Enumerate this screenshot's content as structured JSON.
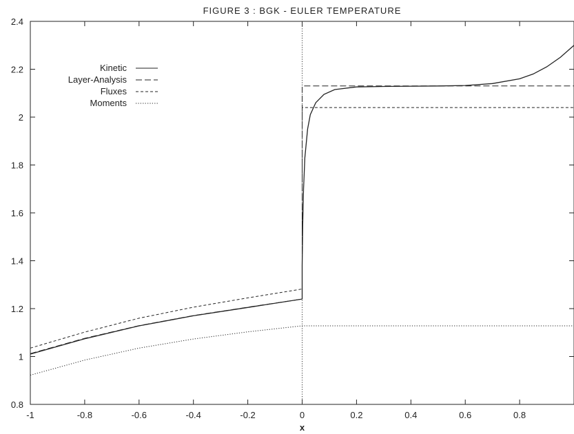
{
  "chart_data": {
    "type": "line",
    "title": "FIGURE 3 : BGK - EULER TEMPERATURE",
    "xlabel": "x",
    "ylabel": "",
    "xlim": [
      -1,
      1
    ],
    "ylim": [
      0.8,
      2.4
    ],
    "xticks": [
      -1,
      -0.8,
      -0.6,
      -0.4,
      -0.2,
      0,
      0.2,
      0.4,
      0.6,
      0.8
    ],
    "xtick_labels": [
      "-1",
      "-0.8",
      "-0.6",
      "-0.4",
      "-0.2",
      "0",
      "0.2",
      "0.4",
      "0.6",
      "0.8"
    ],
    "yticks": [
      0.8,
      1,
      1.2,
      1.4,
      1.6,
      1.8,
      2,
      2.2,
      2.4
    ],
    "ytick_labels": [
      "0.8",
      "1",
      "1.2",
      "1.4",
      "1.6",
      "1.8",
      "2",
      "2.2",
      "2.4"
    ],
    "grid": false,
    "legend_position": "top-left",
    "series": [
      {
        "name": "Kinetic",
        "dash": "solid",
        "x": [
          -1,
          -0.8,
          -0.6,
          -0.4,
          -0.2,
          0,
          0,
          0.002,
          0.005,
          0.01,
          0.02,
          0.03,
          0.05,
          0.08,
          0.12,
          0.2,
          0.3,
          0.5,
          0.6,
          0.7,
          0.8,
          0.85,
          0.9,
          0.95,
          1.0
        ],
        "y": [
          1.01,
          1.074,
          1.128,
          1.17,
          1.205,
          1.24,
          1.38,
          1.55,
          1.7,
          1.83,
          1.95,
          2.01,
          2.06,
          2.095,
          2.115,
          2.126,
          2.128,
          2.13,
          2.132,
          2.14,
          2.16,
          2.18,
          2.21,
          2.25,
          2.3
        ]
      },
      {
        "name": "Layer-Analysis",
        "dash": "dashed",
        "x": [
          -1,
          -0.8,
          -0.6,
          -0.4,
          -0.2,
          0,
          0,
          1.0
        ],
        "y": [
          1.012,
          1.076,
          1.129,
          1.171,
          1.206,
          1.24,
          2.13,
          2.13
        ]
      },
      {
        "name": "Fluxes",
        "dash": "short-dashed",
        "x": [
          -1,
          -0.8,
          -0.6,
          -0.4,
          -0.2,
          0,
          0,
          1.0
        ],
        "y": [
          1.035,
          1.102,
          1.16,
          1.206,
          1.245,
          1.282,
          2.04,
          2.04
        ]
      },
      {
        "name": "Moments",
        "dash": "dotted",
        "x": [
          -1,
          -0.8,
          -0.6,
          -0.4,
          -0.2,
          0,
          1.0
        ],
        "y": [
          0.922,
          0.985,
          1.035,
          1.073,
          1.103,
          1.128,
          1.128
        ]
      }
    ],
    "reference_lines": [
      {
        "orientation": "vertical",
        "x": 0,
        "dash": "dotted"
      }
    ]
  }
}
